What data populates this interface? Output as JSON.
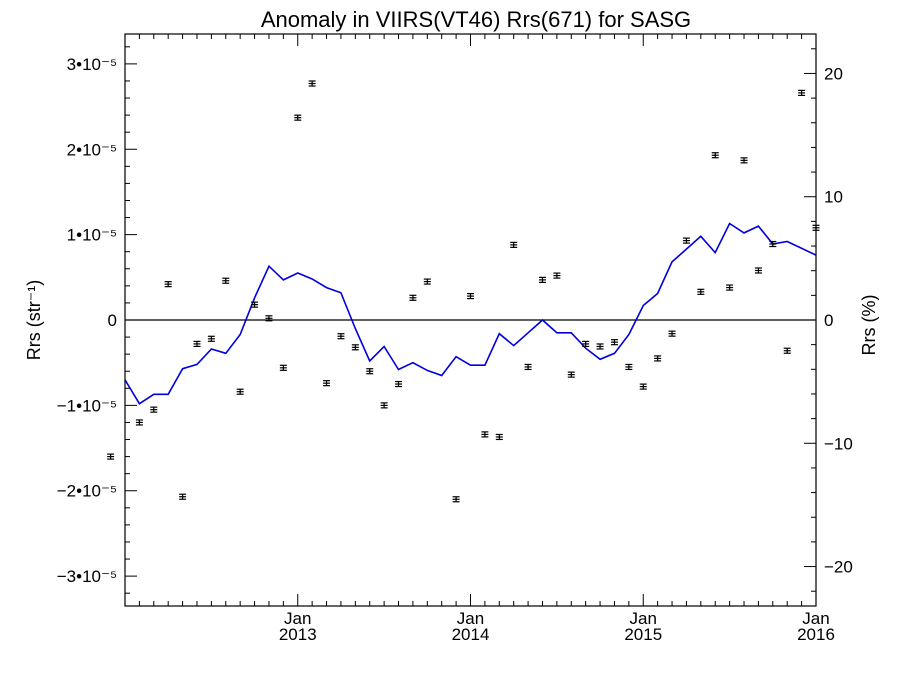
{
  "chart_data": {
    "type": "scatter",
    "title": "Anomaly in VIIRS(VT46) Rrs(671) for SASG",
    "ylabel": "Rrs (str⁻¹)",
    "ylabel_right": "Rrs (%)",
    "x_unit": "month",
    "xlim": [
      "2012-01",
      "2016-01"
    ],
    "ylim": [
      -3.35e-05,
      3.35e-05
    ],
    "ylim_right": [
      -23.2,
      23.2
    ],
    "x_ticks": [
      {
        "month": "2013-01",
        "label_top": "Jan",
        "label_bottom": "2013"
      },
      {
        "month": "2014-01",
        "label_top": "Jan",
        "label_bottom": "2014"
      },
      {
        "month": "2015-01",
        "label_top": "Jan",
        "label_bottom": "2015"
      },
      {
        "month": "2016-01",
        "label_top": "Jan",
        "label_bottom": "2016"
      }
    ],
    "y_ticks_left": [
      {
        "value": 3e-05,
        "label": "3•10⁻⁵"
      },
      {
        "value": 2e-05,
        "label": "2•10⁻⁵"
      },
      {
        "value": 1e-05,
        "label": "1•10⁻⁵"
      },
      {
        "value": 0,
        "label": "0"
      },
      {
        "value": -1e-05,
        "label": "−1•10⁻⁵"
      },
      {
        "value": -2e-05,
        "label": "−2•10⁻⁵"
      },
      {
        "value": -3e-05,
        "label": "−3•10⁻⁵"
      }
    ],
    "y_ticks_right": [
      {
        "value": 20,
        "label": "20"
      },
      {
        "value": 10,
        "label": "10"
      },
      {
        "value": 0,
        "label": "0"
      },
      {
        "value": -10,
        "label": "−10"
      },
      {
        "value": -20,
        "label": "−20"
      }
    ],
    "points": [
      {
        "x": "2011-12",
        "y": -1.6e-05
      },
      {
        "x": "2012-02",
        "y": -1.2e-05
      },
      {
        "x": "2012-03",
        "y": -1.05e-05
      },
      {
        "x": "2012-04",
        "y": 4.2e-06
      },
      {
        "x": "2012-05",
        "y": -2.07e-05
      },
      {
        "x": "2012-06",
        "y": -2.8e-06
      },
      {
        "x": "2012-07",
        "y": -2.2e-06
      },
      {
        "x": "2012-08",
        "y": 4.6e-06
      },
      {
        "x": "2012-09",
        "y": -8.4e-06
      },
      {
        "x": "2012-10",
        "y": 1.8e-06
      },
      {
        "x": "2012-11",
        "y": 2e-07
      },
      {
        "x": "2012-12",
        "y": -5.6e-06
      },
      {
        "x": "2013-01",
        "y": 2.37e-05
      },
      {
        "x": "2013-02",
        "y": 2.77e-05
      },
      {
        "x": "2013-03",
        "y": -7.4e-06
      },
      {
        "x": "2013-04",
        "y": -1.9e-06
      },
      {
        "x": "2013-05",
        "y": -3.2e-06
      },
      {
        "x": "2013-06",
        "y": -6e-06
      },
      {
        "x": "2013-07",
        "y": -1e-05
      },
      {
        "x": "2013-08",
        "y": -7.5e-06
      },
      {
        "x": "2013-09",
        "y": 2.6e-06
      },
      {
        "x": "2013-10",
        "y": 4.5e-06
      },
      {
        "x": "2013-12",
        "y": -2.1e-05
      },
      {
        "x": "2014-01",
        "y": 2.8e-06
      },
      {
        "x": "2014-02",
        "y": -1.34e-05
      },
      {
        "x": "2014-03",
        "y": -1.37e-05
      },
      {
        "x": "2014-04",
        "y": 8.8e-06
      },
      {
        "x": "2014-05",
        "y": -5.5e-06
      },
      {
        "x": "2014-06",
        "y": 4.7e-06
      },
      {
        "x": "2014-07",
        "y": 5.2e-06
      },
      {
        "x": "2014-08",
        "y": -6.4e-06
      },
      {
        "x": "2014-09",
        "y": -2.8e-06
      },
      {
        "x": "2014-10",
        "y": -3.1e-06
      },
      {
        "x": "2014-11",
        "y": -2.6e-06
      },
      {
        "x": "2014-12",
        "y": -5.5e-06
      },
      {
        "x": "2015-01",
        "y": -7.8e-06
      },
      {
        "x": "2015-02",
        "y": -4.5e-06
      },
      {
        "x": "2015-03",
        "y": -1.6e-06
      },
      {
        "x": "2015-04",
        "y": 9.3e-06
      },
      {
        "x": "2015-05",
        "y": 3.3e-06
      },
      {
        "x": "2015-06",
        "y": 1.93e-05
      },
      {
        "x": "2015-07",
        "y": 3.8e-06
      },
      {
        "x": "2015-08",
        "y": 1.87e-05
      },
      {
        "x": "2015-09",
        "y": 5.8e-06
      },
      {
        "x": "2015-10",
        "y": 8.9e-06
      },
      {
        "x": "2015-11",
        "y": -3.6e-06
      },
      {
        "x": "2015-12",
        "y": 2.66e-05
      },
      {
        "x": "2016-01",
        "y": 1.08e-05
      }
    ],
    "line": {
      "color": "#0000dd",
      "points": [
        {
          "x": "2012-01",
          "y": -7e-06
        },
        {
          "x": "2012-02",
          "y": -9.8e-06
        },
        {
          "x": "2012-03",
          "y": -8.7e-06
        },
        {
          "x": "2012-04",
          "y": -8.7e-06
        },
        {
          "x": "2012-05",
          "y": -5.7e-06
        },
        {
          "x": "2012-06",
          "y": -5.2e-06
        },
        {
          "x": "2012-07",
          "y": -3.4e-06
        },
        {
          "x": "2012-08",
          "y": -3.9e-06
        },
        {
          "x": "2012-09",
          "y": -1.7e-06
        },
        {
          "x": "2012-10",
          "y": 2.6e-06
        },
        {
          "x": "2012-11",
          "y": 6.3e-06
        },
        {
          "x": "2012-12",
          "y": 4.7e-06
        },
        {
          "x": "2013-01",
          "y": 5.5e-06
        },
        {
          "x": "2013-02",
          "y": 4.8e-06
        },
        {
          "x": "2013-03",
          "y": 3.8e-06
        },
        {
          "x": "2013-04",
          "y": 3.2e-06
        },
        {
          "x": "2013-05",
          "y": -1e-06
        },
        {
          "x": "2013-06",
          "y": -4.8e-06
        },
        {
          "x": "2013-07",
          "y": -3.1e-06
        },
        {
          "x": "2013-08",
          "y": -5.8e-06
        },
        {
          "x": "2013-09",
          "y": -5e-06
        },
        {
          "x": "2013-10",
          "y": -5.9e-06
        },
        {
          "x": "2013-11",
          "y": -6.5e-06
        },
        {
          "x": "2013-12",
          "y": -4.3e-06
        },
        {
          "x": "2014-01",
          "y": -5.3e-06
        },
        {
          "x": "2014-02",
          "y": -5.3e-06
        },
        {
          "x": "2014-03",
          "y": -1.6e-06
        },
        {
          "x": "2014-04",
          "y": -3e-06
        },
        {
          "x": "2014-05",
          "y": -1.5e-06
        },
        {
          "x": "2014-06",
          "y": 0
        },
        {
          "x": "2014-07",
          "y": -1.5e-06
        },
        {
          "x": "2014-08",
          "y": -1.5e-06
        },
        {
          "x": "2014-09",
          "y": -3.3e-06
        },
        {
          "x": "2014-10",
          "y": -4.6e-06
        },
        {
          "x": "2014-11",
          "y": -3.9e-06
        },
        {
          "x": "2014-12",
          "y": -1.7e-06
        },
        {
          "x": "2015-01",
          "y": 1.7e-06
        },
        {
          "x": "2015-02",
          "y": 3.1e-06
        },
        {
          "x": "2015-03",
          "y": 6.8e-06
        },
        {
          "x": "2015-04",
          "y": 8.3e-06
        },
        {
          "x": "2015-05",
          "y": 9.8e-06
        },
        {
          "x": "2015-06",
          "y": 7.9e-06
        },
        {
          "x": "2015-07",
          "y": 1.13e-05
        },
        {
          "x": "2015-08",
          "y": 1.02e-05
        },
        {
          "x": "2015-09",
          "y": 1.1e-05
        },
        {
          "x": "2015-10",
          "y": 8.9e-06
        },
        {
          "x": "2015-11",
          "y": 9.2e-06
        },
        {
          "x": "2016-01",
          "y": 7.6e-06
        }
      ]
    },
    "zero_line": true,
    "grid": false,
    "legend": "none"
  }
}
